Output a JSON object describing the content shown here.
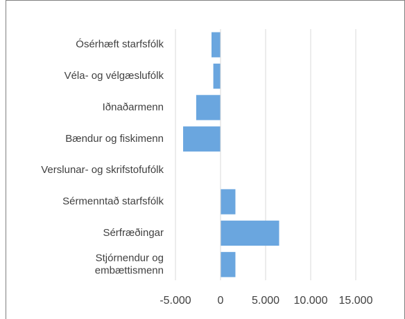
{
  "chart_data": {
    "type": "bar",
    "orientation": "horizontal",
    "categories": [
      "Ósérhæft starfsfólk",
      "Véla- og vélgæslufólk",
      "Iðnaðarmenn",
      "Bændur og fiskimenn",
      "Verslunar- og skrifstofufólk",
      "Sérmenntað starfsfólk",
      "Sérfræðingar",
      "Stjórnendur og\nembættismenn"
    ],
    "values": [
      -1000,
      -800,
      -2700,
      -4150,
      0,
      1650,
      6500,
      1650
    ],
    "color": "#6aa6df",
    "xlim": [
      -5000,
      15000
    ],
    "xticks": [
      {
        "value": -5000,
        "label": "-5.000"
      },
      0,
      {
        "value": 5000,
        "label": "5.000"
      },
      {
        "value": 10000,
        "label": "10.000"
      },
      {
        "value": 15000,
        "label": "15.000"
      }
    ],
    "grid": true
  }
}
